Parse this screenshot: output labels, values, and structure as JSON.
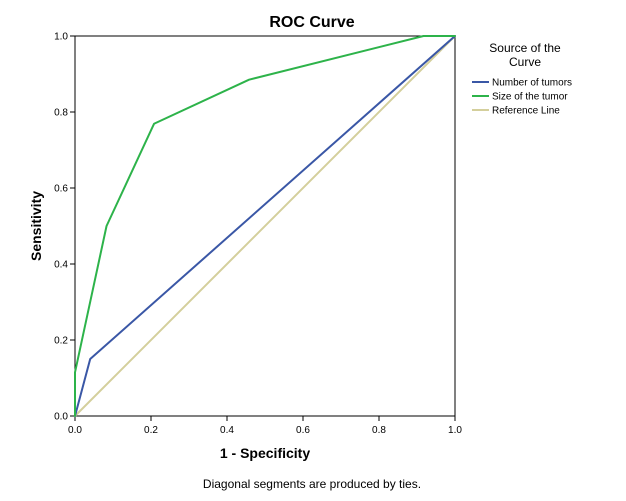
{
  "chart_data": {
    "type": "line",
    "title": "ROC Curve",
    "xlabel": "1 - Specificity",
    "ylabel": "Sensitivity",
    "footnote": "Diagonal segments are produced by ties.",
    "xlim": [
      0.0,
      1.0
    ],
    "ylim": [
      0.0,
      1.0
    ],
    "xticks": [
      "0.0",
      "0.2",
      "0.4",
      "0.6",
      "0.8",
      "1.0"
    ],
    "yticks": [
      "0.0",
      "0.2",
      "0.4",
      "0.6",
      "0.8",
      "1.0"
    ],
    "grid": false,
    "legend": {
      "title_line1": "Source of the",
      "title_line2": "Curve",
      "placement": "right"
    },
    "series": [
      {
        "name": "Number of tumors",
        "color": "#3a57a6",
        "points": [
          [
            0.0,
            0.0
          ],
          [
            0.04,
            0.15
          ],
          [
            1.0,
            1.0
          ]
        ]
      },
      {
        "name": "Size of the tumor",
        "color": "#2db34a",
        "points": [
          [
            0.0,
            0.0
          ],
          [
            0.0,
            0.115
          ],
          [
            0.083,
            0.5
          ],
          [
            0.208,
            0.769
          ],
          [
            0.458,
            0.885
          ],
          [
            0.917,
            1.0
          ],
          [
            1.0,
            1.0
          ]
        ]
      },
      {
        "name": "Reference Line",
        "color": "#d4cf9c",
        "points": [
          [
            0.0,
            0.0
          ],
          [
            1.0,
            1.0
          ]
        ]
      }
    ]
  }
}
